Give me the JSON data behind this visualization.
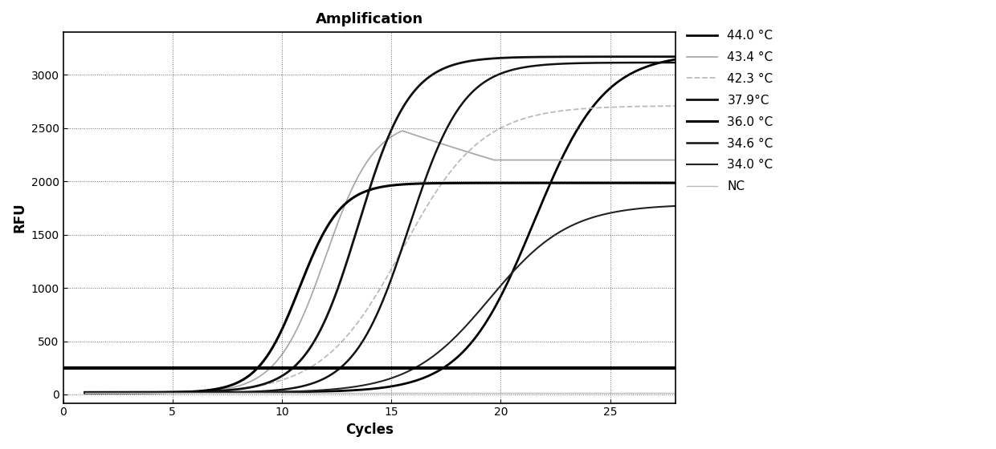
{
  "title": "Amplification",
  "xlabel": "Cycles",
  "ylabel": "RFU",
  "xlim": [
    1,
    28
  ],
  "ylim": [
    -80,
    3400
  ],
  "xticks": [
    0,
    5,
    10,
    15,
    20,
    25
  ],
  "yticks": [
    0,
    500,
    1000,
    1500,
    2000,
    2500,
    3000
  ],
  "threshold_y": 250,
  "background_color": "#ffffff",
  "series": [
    {
      "label": "44.0 °C",
      "color": "#000000",
      "linewidth": 2.0,
      "linestyle": "-",
      "L": 3180,
      "k": 0.62,
      "x0": 21.5,
      "baseline": 20
    },
    {
      "label": "43.4 °C",
      "color": "#aaaaaa",
      "linewidth": 1.3,
      "linestyle": "-",
      "L": 2570,
      "k": 0.9,
      "x0": 12.0,
      "baseline": 10,
      "peak": true,
      "peak_x": 15.5,
      "decay": 0.028,
      "final_y": 2200
    },
    {
      "label": "42.3 °C",
      "color": "#bbbbbb",
      "linewidth": 1.3,
      "linestyle": "--",
      "L": 2700,
      "k": 0.55,
      "x0": 15.5,
      "baseline": 10
    },
    {
      "label": "37.9°C",
      "color": "#111111",
      "linewidth": 2.0,
      "linestyle": "-",
      "L": 3150,
      "k": 0.85,
      "x0": 13.5,
      "baseline": 20
    },
    {
      "label": "36.0 °C",
      "color": "#000000",
      "linewidth": 2.2,
      "linestyle": "-",
      "L": 1970,
      "k": 1.05,
      "x0": 10.8,
      "baseline": 15
    },
    {
      "label": "34.6 °C",
      "color": "#111111",
      "linewidth": 1.8,
      "linestyle": "-",
      "L": 3100,
      "k": 0.8,
      "x0": 15.8,
      "baseline": 15
    },
    {
      "label": "34.0 °C",
      "color": "#222222",
      "linewidth": 1.5,
      "linestyle": "-",
      "L": 1770,
      "k": 0.55,
      "x0": 19.5,
      "baseline": 15
    },
    {
      "label": "NC",
      "color": "#bbbbbb",
      "linewidth": 1.0,
      "linestyle": "-",
      "flat_y": 18
    }
  ],
  "threshold_color": "#000000",
  "threshold_linewidth": 3.0,
  "legend_colors": [
    "#000000",
    "#aaaaaa",
    "#bbbbbb",
    "#111111",
    "#000000",
    "#111111",
    "#222222",
    "#bbbbbb"
  ],
  "legend_linewidths": [
    2.0,
    1.3,
    1.3,
    2.0,
    2.2,
    1.8,
    1.5,
    1.0
  ],
  "legend_linestyles": [
    "-",
    "-",
    "--",
    "-",
    "-",
    "-",
    "-",
    "-"
  ]
}
